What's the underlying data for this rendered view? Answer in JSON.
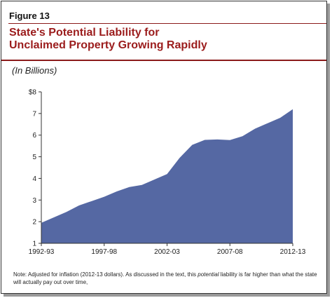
{
  "figure_label": "Figure 13",
  "title_lines": [
    "State's Potential Liability for",
    "Unclaimed Property Growing Rapidly"
  ],
  "subtitle": "(In Billions)",
  "note": {
    "part1": "Note: Adjusted for inflation (2012-13 dollars). As discussed in the text, this ",
    "emphasis": "potential",
    "part2": " liability is far higher than what the state will actually pay out over time,"
  },
  "colors": {
    "area_fill": "#5568a3",
    "title": "#9b1c1c",
    "rule": "#8b1a1a"
  },
  "chart_data": {
    "type": "area",
    "title": "",
    "xlabel": "",
    "ylabel": "",
    "ylim": [
      1,
      8
    ],
    "yticks": [
      1,
      2,
      3,
      4,
      5,
      6,
      7,
      8
    ],
    "ytick_labels": [
      "1",
      "2",
      "3",
      "4",
      "5",
      "6",
      "7",
      "$8"
    ],
    "x": [
      "1992-93",
      "1993-94",
      "1994-95",
      "1995-96",
      "1996-97",
      "1997-98",
      "1998-99",
      "1999-00",
      "2000-01",
      "2001-02",
      "2002-03",
      "2003-04",
      "2004-05",
      "2005-06",
      "2006-07",
      "2007-08",
      "2008-09",
      "2009-10",
      "2010-11",
      "2011-12",
      "2012-13"
    ],
    "xtick_labels": [
      "1992-93",
      "1997-98",
      "2002-03",
      "2007-08",
      "2012-13"
    ],
    "series": [
      {
        "values": [
          1.95,
          2.2,
          2.45,
          2.75,
          2.95,
          3.15,
          3.4,
          3.6,
          3.7,
          3.95,
          4.2,
          4.95,
          5.55,
          5.78,
          5.8,
          5.77,
          5.95,
          6.3,
          6.55,
          6.8,
          7.2
        ]
      }
    ],
    "grid": false,
    "legend": "none"
  }
}
